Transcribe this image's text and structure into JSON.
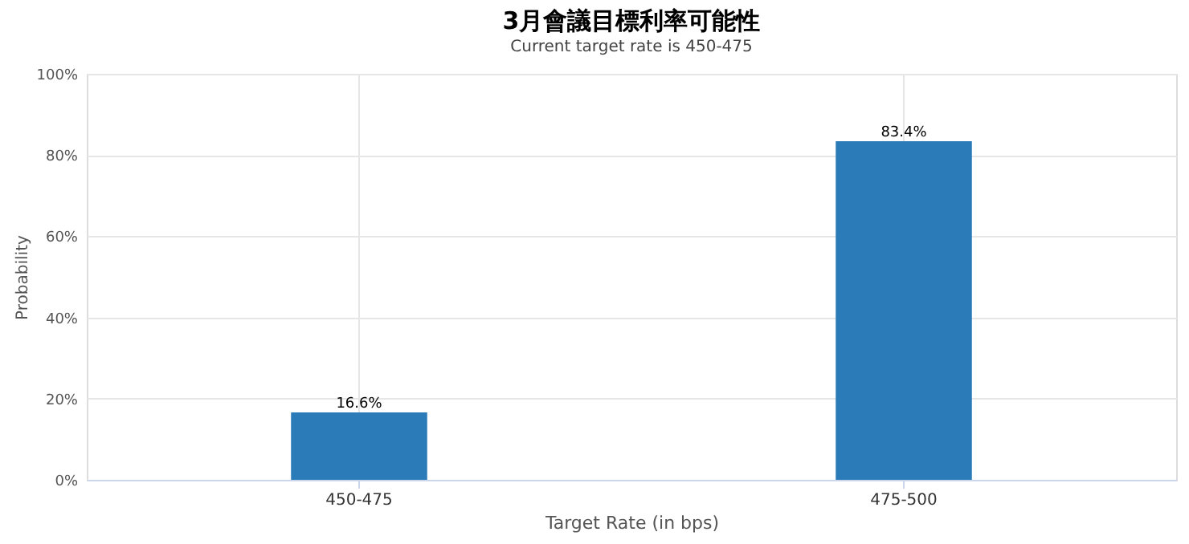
{
  "chart_data": {
    "type": "bar",
    "title": "3月會議目標利率可能性",
    "subtitle": "Current target rate is 450-475",
    "xlabel": "Target Rate (in bps)",
    "ylabel": "Probability",
    "categories": [
      "450-475",
      "475-500"
    ],
    "values": [
      16.6,
      83.4
    ],
    "color": "#2b7bb9",
    "value_labels": [
      "16.6%",
      "83.4%"
    ],
    "ylim": [
      0,
      100
    ],
    "yticks": [
      {
        "value": 0,
        "label": "0%"
      },
      {
        "value": 20,
        "label": "20%"
      },
      {
        "value": 40,
        "label": "40%"
      },
      {
        "value": 60,
        "label": "60%"
      },
      {
        "value": 80,
        "label": "80%"
      },
      {
        "value": 100,
        "label": "100%"
      }
    ],
    "grid": true
  }
}
